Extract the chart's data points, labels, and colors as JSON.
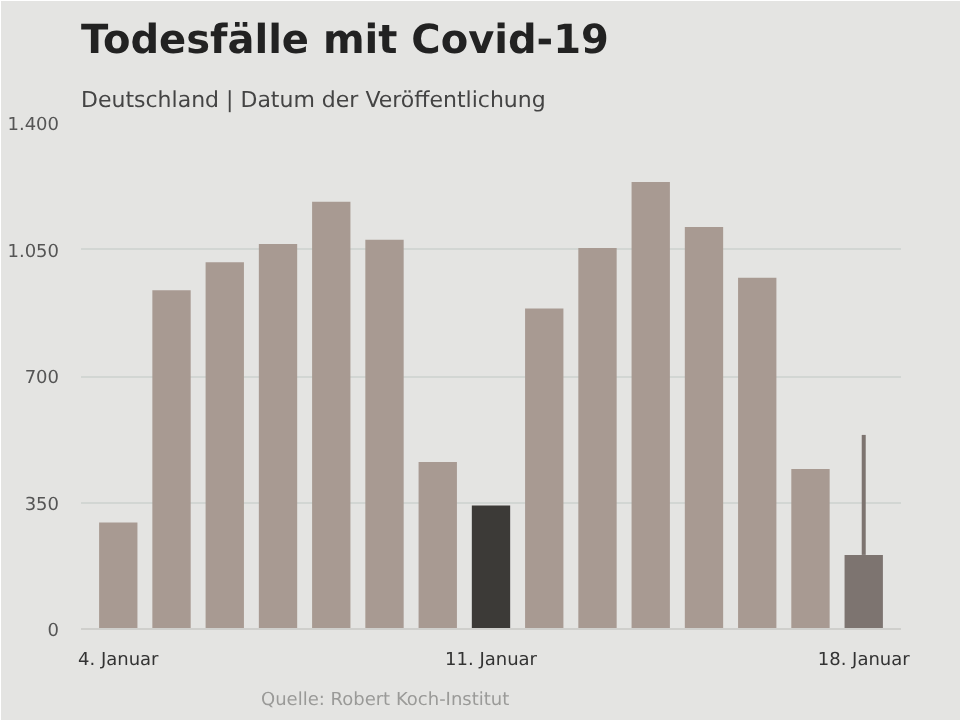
{
  "chart_data": {
    "type": "bar",
    "title": "Todesfälle mit Covid-19",
    "subtitle": "Deutschland | Datum der Veröffentlichung",
    "categories": [
      "4. Januar",
      null,
      null,
      null,
      null,
      null,
      null,
      "11. Januar",
      null,
      null,
      null,
      null,
      null,
      null,
      "18. Januar"
    ],
    "values": [
      295,
      937,
      1015,
      1065,
      1182,
      1077,
      462,
      342,
      887,
      1054,
      1237,
      1112,
      972,
      443,
      205
    ],
    "colors": [
      "#a89a92",
      "#a89a92",
      "#a89a92",
      "#a89a92",
      "#a89a92",
      "#a89a92",
      "#a89a92",
      "#3c3a37",
      "#a89a92",
      "#a89a92",
      "#a89a92",
      "#a89a92",
      "#a89a92",
      "#a89a92",
      "#7d7470"
    ],
    "errors": [
      null,
      null,
      null,
      null,
      null,
      null,
      null,
      null,
      null,
      null,
      null,
      null,
      null,
      null,
      [
        205,
        537
      ]
    ],
    "ylim": [
      0,
      1400
    ],
    "yticks": [
      0,
      350,
      700,
      {
        "value": 1050,
        "label": "1.050"
      },
      {
        "value": 1400,
        "label": "1.400"
      }
    ],
    "grid": "y",
    "annotations": [
      "Quelle: Robert Koch-Institut"
    ]
  }
}
